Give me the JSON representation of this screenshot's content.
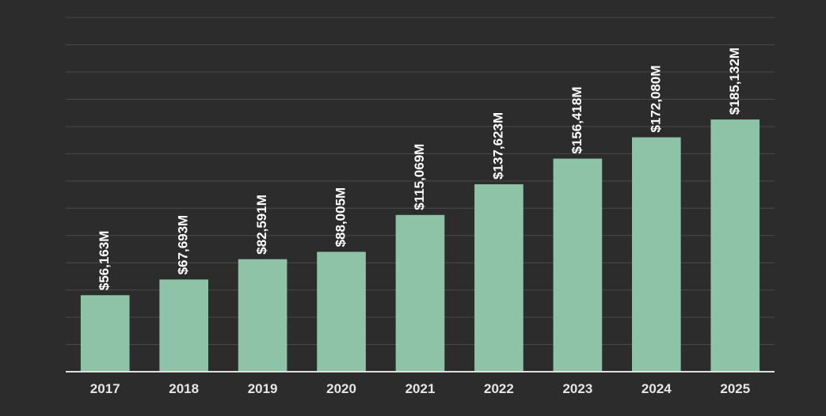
{
  "chart_data": {
    "type": "bar",
    "title": "",
    "xlabel": "",
    "ylabel": "",
    "categories": [
      "2017",
      "2018",
      "2019",
      "2020",
      "2021",
      "2022",
      "2023",
      "2024",
      "2025"
    ],
    "values": [
      56163,
      67693,
      82591,
      88005,
      115069,
      137623,
      156418,
      172080,
      185132
    ],
    "value_labels": [
      "$56,163M",
      "$67,693M",
      "$82,591M",
      "$88,005M",
      "$115,069M",
      "$137,623M",
      "$156,418M",
      "$172,080M",
      "$185,132M"
    ],
    "ylim": [
      0,
      260000
    ],
    "grid": true,
    "bar_color": "#8ec3a7",
    "background_color": "#2c2c2c",
    "text_color": "#ffffff"
  }
}
